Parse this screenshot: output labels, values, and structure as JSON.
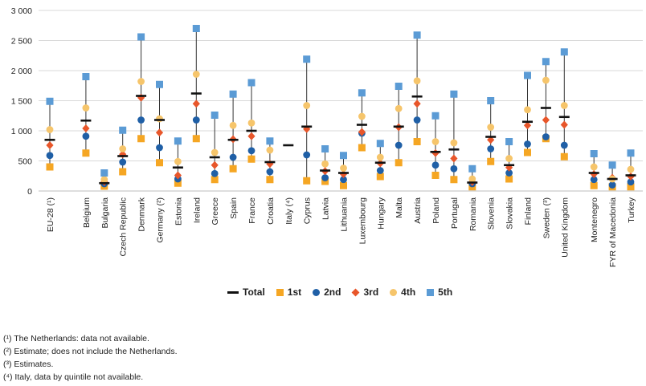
{
  "chart_data": {
    "type": "scatter",
    "ylim": [
      0,
      3000
    ],
    "yticks": [
      "0",
      "500",
      "1 000",
      "1 500",
      "2 000",
      "2 500",
      "3 000"
    ],
    "grid": true,
    "legend_placement": "bottom",
    "categories": [
      "EU-28 (¹)",
      "Belgium",
      "Bulgaria",
      "Czech Republic",
      "Denmark",
      "Germany (²)",
      "Estonia",
      "Ireland",
      "Greece",
      "Spain",
      "France",
      "Croatia",
      "Italy (⁴)",
      "Cyprus",
      "Latvia",
      "Lithuania",
      "Luxembourg",
      "Hungary",
      "Malta",
      "Austria",
      "Poland",
      "Portugal",
      "Romania",
      "Slovenia",
      "Slovakia",
      "Finland",
      "Sweden (³)",
      "United Kingdom",
      "Montenegro",
      "FYR of Macedonia",
      "Turkey"
    ],
    "series": [
      {
        "name": "Total",
        "color": "#111111",
        "values": [
          850,
          1170,
          130,
          580,
          1580,
          1180,
          390,
          1620,
          560,
          850,
          1000,
          480,
          760,
          1070,
          340,
          300,
          1100,
          470,
          1070,
          1570,
          650,
          690,
          140,
          900,
          430,
          1150,
          1380,
          1230,
          300,
          200,
          260
        ]
      },
      {
        "name": "1st",
        "color": "#f5a623",
        "values": [
          400,
          630,
          80,
          320,
          870,
          470,
          130,
          870,
          190,
          370,
          530,
          190,
          null,
          170,
          160,
          90,
          720,
          240,
          470,
          820,
          260,
          190,
          70,
          490,
          200,
          640,
          870,
          570,
          90,
          70,
          70
        ]
      },
      {
        "name": "2nd",
        "color": "#1f5fa6",
        "values": [
          590,
          910,
          120,
          480,
          1180,
          720,
          200,
          1180,
          290,
          560,
          670,
          320,
          null,
          600,
          220,
          190,
          960,
          340,
          760,
          1180,
          430,
          370,
          120,
          700,
          300,
          780,
          900,
          760,
          190,
          100,
          150
        ]
      },
      {
        "name": "3rd",
        "color": "#e8562a",
        "values": [
          760,
          1040,
          150,
          610,
          1550,
          970,
          260,
          1450,
          430,
          860,
          910,
          450,
          null,
          1030,
          330,
          280,
          980,
          460,
          1060,
          1450,
          630,
          540,
          150,
          850,
          390,
          1090,
          1180,
          1100,
          280,
          220,
          240
        ]
      },
      {
        "name": "4th",
        "color": "#f6c56b",
        "values": [
          1020,
          1380,
          190,
          700,
          1820,
          1200,
          490,
          1940,
          640,
          1090,
          1130,
          680,
          null,
          1420,
          450,
          380,
          1240,
          560,
          1370,
          1830,
          820,
          800,
          200,
          1060,
          540,
          1350,
          1840,
          1420,
          400,
          200,
          360
        ]
      },
      {
        "name": "5th",
        "color": "#5b9bd5",
        "values": [
          1490,
          1900,
          300,
          1010,
          2560,
          1770,
          830,
          2700,
          1260,
          1610,
          1800,
          830,
          null,
          2190,
          700,
          590,
          1630,
          790,
          1740,
          2590,
          1250,
          1610,
          370,
          1500,
          820,
          1920,
          2150,
          2310,
          620,
          430,
          630
        ]
      }
    ]
  },
  "footnotes": [
    "(¹) The Netherlands: data not available.",
    "(²) Estimate; does not include the Netherlands.",
    "(³) Estimates.",
    "(⁴) Italy, data by quintile not available."
  ]
}
